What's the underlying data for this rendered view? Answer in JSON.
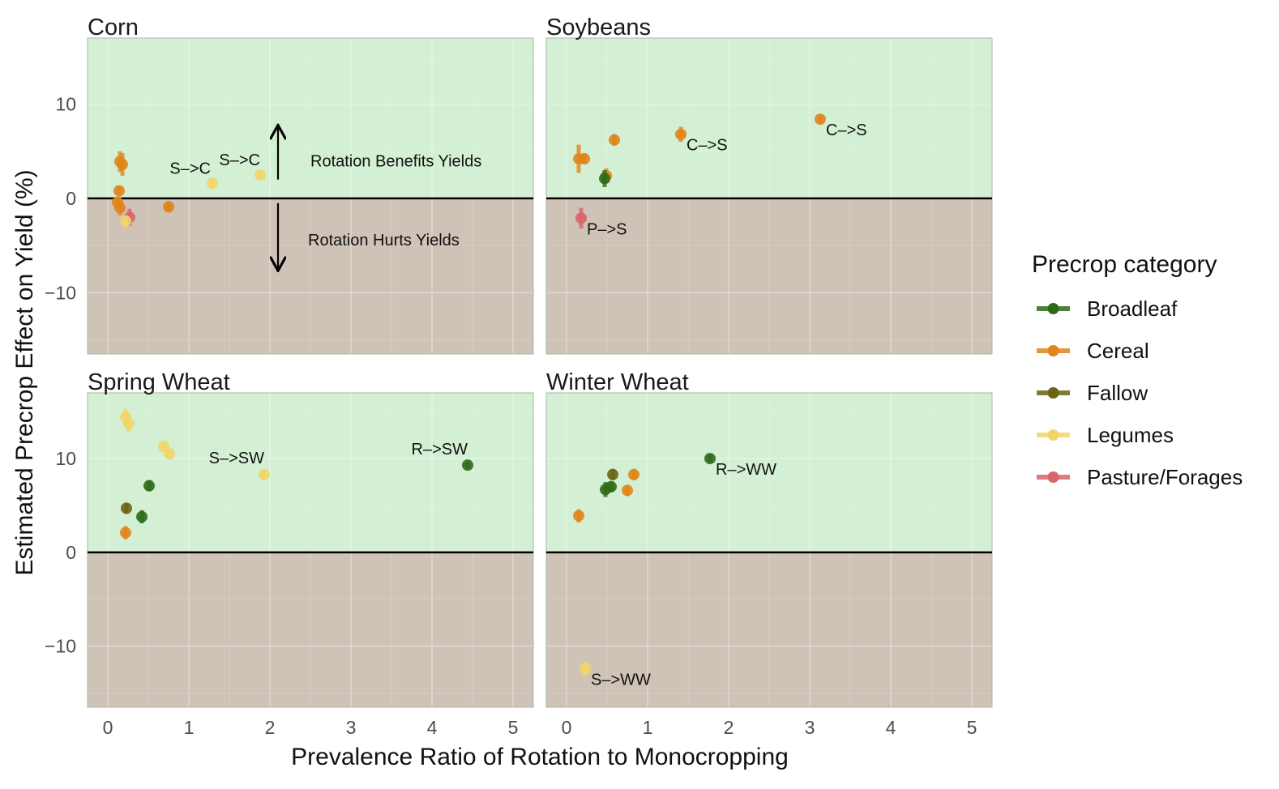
{
  "chart_data": {
    "type": "scatter",
    "facets": [
      {
        "title": "Corn",
        "points": [
          {
            "x": 0.15,
            "y": 3.9,
            "err": 1.1,
            "category": "Cereal"
          },
          {
            "x": 0.18,
            "y": 3.6,
            "err": 1.2,
            "category": "Cereal"
          },
          {
            "x": 0.14,
            "y": 0.8,
            "err": 0.5,
            "category": "Cereal"
          },
          {
            "x": 0.12,
            "y": -0.4,
            "err": 0.6,
            "category": "Cereal"
          },
          {
            "x": 0.15,
            "y": -1.0,
            "err": 0.8,
            "category": "Cereal"
          },
          {
            "x": 0.75,
            "y": -0.9,
            "err": 0.6,
            "category": "Cereal"
          },
          {
            "x": 0.27,
            "y": -2.0,
            "err": 0.9,
            "category": "Pasture/Forages"
          },
          {
            "x": 0.22,
            "y": -2.4,
            "err": 0.6,
            "category": "Legumes"
          },
          {
            "x": 1.29,
            "y": 1.6,
            "err": 0.6,
            "category": "Legumes",
            "label": "S–>C"
          },
          {
            "x": 1.88,
            "y": 2.5,
            "err": 0.4,
            "category": "Legumes",
            "label": "S–>C"
          }
        ],
        "annotations": [
          "Rotation Benefits Yields",
          "Rotation Hurts Yields"
        ]
      },
      {
        "title": "Soybeans",
        "points": [
          {
            "x": 0.15,
            "y": 4.2,
            "err": 1.5,
            "category": "Cereal"
          },
          {
            "x": 0.22,
            "y": 4.2,
            "err": 0.6,
            "category": "Cereal"
          },
          {
            "x": 0.59,
            "y": 6.2,
            "err": 0.6,
            "category": "Cereal"
          },
          {
            "x": 0.49,
            "y": 2.4,
            "err": 0.8,
            "category": "Cereal"
          },
          {
            "x": 0.47,
            "y": 2.1,
            "err": 0.9,
            "category": "Broadleaf"
          },
          {
            "x": 1.41,
            "y": 6.8,
            "err": 0.8,
            "category": "Cereal",
            "label": "C–>S"
          },
          {
            "x": 3.13,
            "y": 8.4,
            "err": 0.4,
            "category": "Cereal",
            "label": "C–>S"
          },
          {
            "x": 0.18,
            "y": -2.1,
            "err": 1.1,
            "category": "Pasture/Forages",
            "label": "P–>S"
          }
        ],
        "annotations": []
      },
      {
        "title": "Spring Wheat",
        "points": [
          {
            "x": 0.22,
            "y": 14.4,
            "err": 0.9,
            "category": "Legumes"
          },
          {
            "x": 0.26,
            "y": 13.7,
            "err": 0.8,
            "category": "Legumes"
          },
          {
            "x": 0.69,
            "y": 11.3,
            "err": 0.5,
            "category": "Legumes"
          },
          {
            "x": 0.76,
            "y": 10.5,
            "err": 0.5,
            "category": "Legumes"
          },
          {
            "x": 1.93,
            "y": 8.3,
            "err": 0.6,
            "category": "Legumes",
            "label": "S–>SW"
          },
          {
            "x": 4.44,
            "y": 9.3,
            "err": 0.3,
            "category": "Broadleaf",
            "label": "R–>SW"
          },
          {
            "x": 0.51,
            "y": 7.1,
            "err": 0.6,
            "category": "Broadleaf"
          },
          {
            "x": 0.23,
            "y": 4.7,
            "err": 0.6,
            "category": "Fallow"
          },
          {
            "x": 0.42,
            "y": 3.8,
            "err": 0.7,
            "category": "Broadleaf"
          },
          {
            "x": 0.22,
            "y": 2.1,
            "err": 0.7,
            "category": "Cereal"
          }
        ],
        "annotations": []
      },
      {
        "title": "Winter Wheat",
        "points": [
          {
            "x": 1.77,
            "y": 10.0,
            "err": 0.4,
            "category": "Broadleaf",
            "label": "R–>WW"
          },
          {
            "x": 0.57,
            "y": 8.3,
            "err": 0.6,
            "category": "Fallow"
          },
          {
            "x": 0.83,
            "y": 8.3,
            "err": 0.6,
            "category": "Cereal"
          },
          {
            "x": 0.48,
            "y": 6.7,
            "err": 0.8,
            "category": "Broadleaf"
          },
          {
            "x": 0.55,
            "y": 7.0,
            "err": 0.6,
            "category": "Broadleaf"
          },
          {
            "x": 0.75,
            "y": 6.6,
            "err": 0.6,
            "category": "Cereal"
          },
          {
            "x": 0.15,
            "y": 3.9,
            "err": 0.7,
            "category": "Cereal"
          },
          {
            "x": 0.23,
            "y": -12.4,
            "err": 0.8,
            "category": "Legumes",
            "label": "S–>WW"
          }
        ],
        "annotations": []
      }
    ],
    "xlabel": "Prevalence Ratio of Rotation to Monocropping",
    "ylabel": "Estimated Precrop Effect on Yield (%)",
    "xlim": [
      -0.25,
      5.25
    ],
    "ylim": [
      -16.5,
      17
    ],
    "xticks": [
      0,
      1,
      2,
      3,
      4,
      5
    ],
    "yticks": [
      -10,
      0,
      10
    ],
    "grid": true,
    "legend": {
      "title": "Precrop category",
      "placement": "right",
      "entries": [
        {
          "name": "Broadleaf",
          "color": "#2e6a1a"
        },
        {
          "name": "Cereal",
          "color": "#e0841b"
        },
        {
          "name": "Fallow",
          "color": "#6b6512"
        },
        {
          "name": "Legumes",
          "color": "#f2d56a"
        },
        {
          "name": "Pasture/Forages",
          "color": "#d9636a"
        }
      ]
    },
    "background": {
      "positive": "#d4f0d4",
      "negative": "#cfc3b7"
    }
  }
}
